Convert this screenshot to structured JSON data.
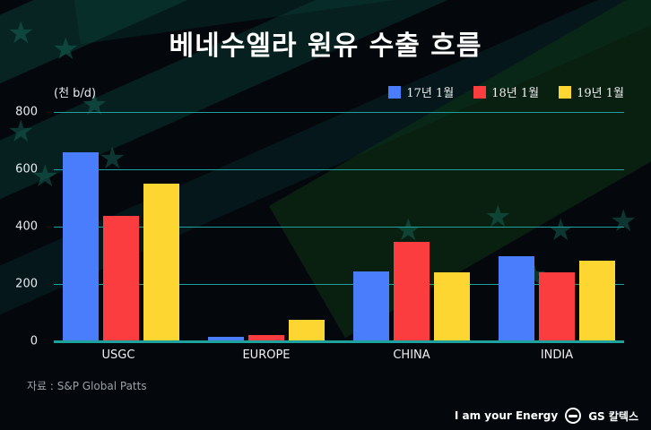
{
  "title": "베네수엘라 원유 수출 흐름",
  "unit_label": "(천 b/d)",
  "legend": [
    {
      "label": "17년 1월",
      "color": "#4a7dfc"
    },
    {
      "label": "18년 1월",
      "color": "#fc3d3f"
    },
    {
      "label": "19년 1월",
      "color": "#fed631"
    }
  ],
  "y_ticks": [
    "800",
    "600",
    "400",
    "200",
    "0"
  ],
  "source": "자료 : S&P Global Patts",
  "footer": {
    "tagline": "I am your Energy",
    "brand": "GS 칼텍스"
  },
  "chart_data": {
    "type": "bar",
    "title": "베네수엘라 원유 수출 흐름",
    "xlabel": "",
    "ylabel": "(천 b/d)",
    "ylim": [
      0,
      800
    ],
    "y_ticks": [
      0,
      200,
      400,
      600,
      800
    ],
    "grid": true,
    "legend_position": "top-right",
    "categories": [
      "USGC",
      "EUROPE",
      "CHINA",
      "INDIA"
    ],
    "series": [
      {
        "name": "17년 1월",
        "color": "#4a7dfc",
        "values": [
          660,
          16,
          244,
          297
        ]
      },
      {
        "name": "18년 1월",
        "color": "#fc3d3f",
        "values": [
          437,
          22,
          347,
          241
        ]
      },
      {
        "name": "19년 1월",
        "color": "#fed631",
        "values": [
          550,
          75,
          241,
          281
        ]
      }
    ]
  }
}
